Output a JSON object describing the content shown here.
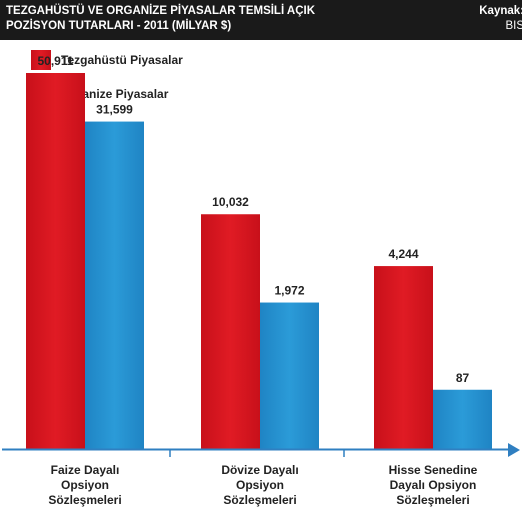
{
  "header": {
    "title": "TEZGAHÜSTÜ VE ORGANİZE PİYASALAR TEMSİLİ AÇIK\nPOZİSYON TUTARLARI - 2011 (MİLYAR $)",
    "source_label": "Kaynak:",
    "source_value": "BIS"
  },
  "colors": {
    "header_bg": "#1a1a1a",
    "otc": "#e01b24",
    "organized": "#2b9bd8",
    "axis": "#2f7fc1"
  },
  "chart_data": {
    "type": "bar",
    "categories": [
      [
        "Faize Dayalı",
        "Opsiyon",
        "Sözleşmeleri"
      ],
      [
        "Dövize Dayalı",
        "Opsiyon",
        "Sözleşmeleri"
      ],
      [
        "Hisse Senedine",
        "Dayalı Opsiyon",
        "Sözleşmeleri"
      ]
    ],
    "series": [
      {
        "name": "Tezgahüstü Piyasalar",
        "values": [
          50911,
          10032,
          4244
        ],
        "labels": [
          "50,911",
          "10,032",
          "4,244"
        ]
      },
      {
        "name": "Organize Piyasalar",
        "values": [
          31599,
          1972,
          87
        ],
        "labels": [
          "31,599",
          "1,972",
          "87"
        ]
      }
    ],
    "legend_position": "top-left"
  }
}
